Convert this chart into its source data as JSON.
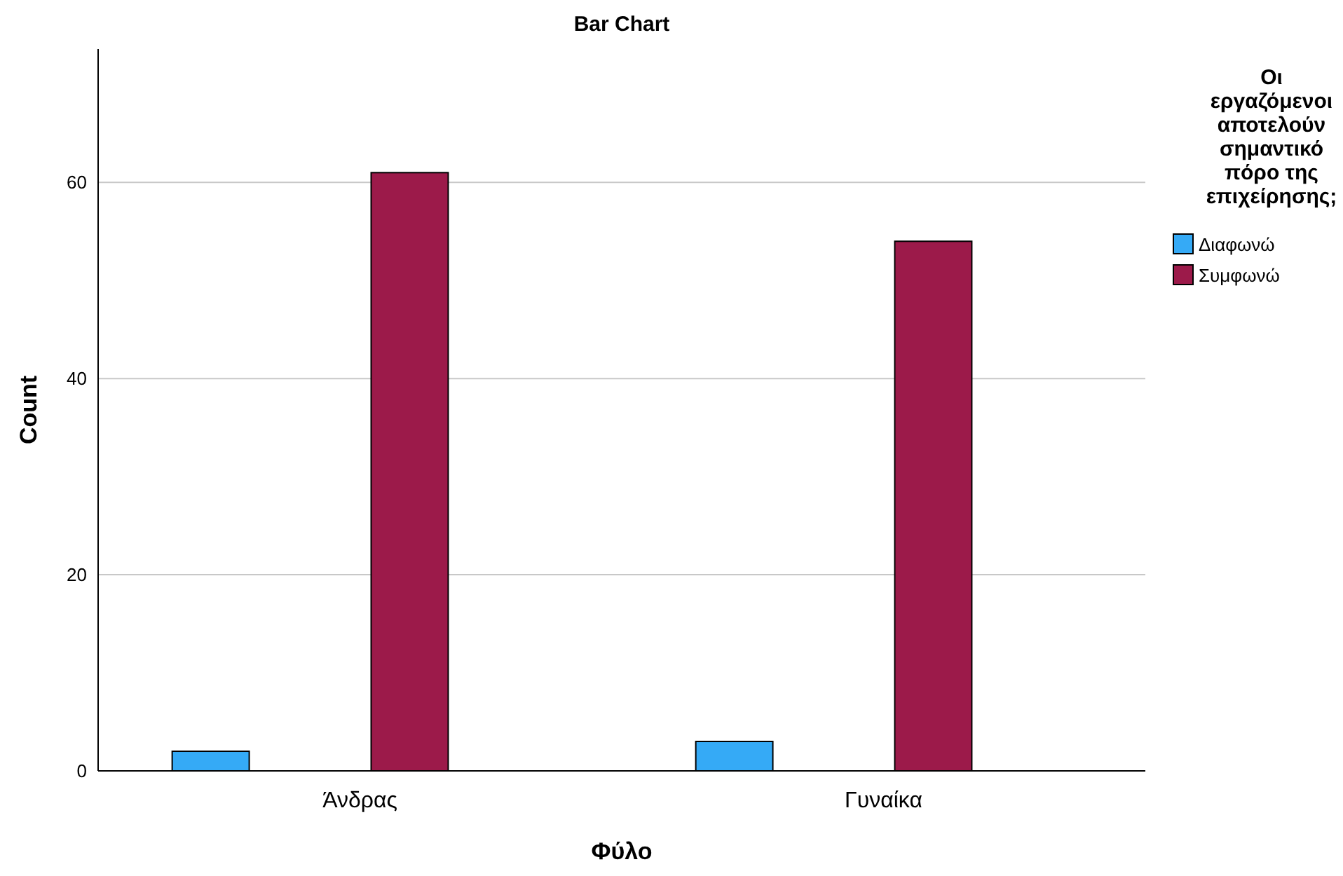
{
  "chart_data": {
    "type": "bar",
    "title": "Bar Chart",
    "xlabel": "Φύλο",
    "ylabel": "Count",
    "legend_title": "Οι εργαζόμενοι αποτελούν σημαντικό πόρο της επιχείρησης;",
    "categories": [
      "Άνδρας",
      "Γυναίκα"
    ],
    "series": [
      {
        "name": "Διαφωνώ",
        "color": "#35aaf6",
        "values": [
          2,
          3
        ]
      },
      {
        "name": "Συμφωνώ",
        "color": "#9c1a4a",
        "values": [
          61,
          54
        ]
      }
    ],
    "ylim": [
      0,
      73.6
    ],
    "yticks": [
      0,
      20,
      40,
      60
    ],
    "grid": "y",
    "legend": "right"
  }
}
